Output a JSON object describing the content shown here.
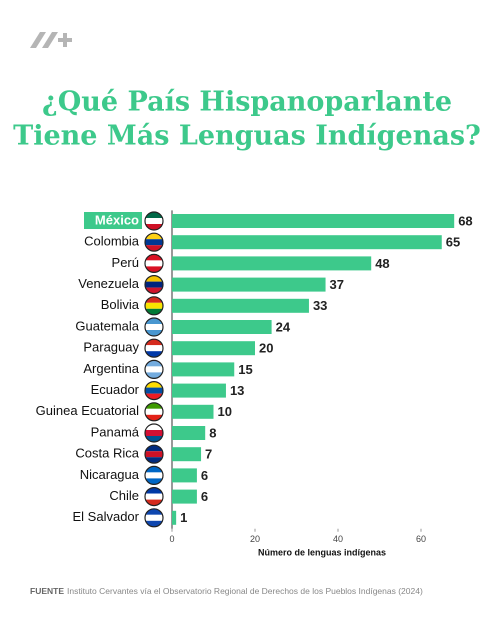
{
  "chart_data": {
    "type": "barh",
    "title": [
      "¿Qué País Hispanoparlante",
      "Tiene Más Lenguas Indígenas?"
    ],
    "categories": [
      "México",
      "Colombia",
      "Perú",
      "Venezuela",
      "Bolivia",
      "Guatemala",
      "Paraguay",
      "Argentina",
      "Ecuador",
      "Guinea Ecuatorial",
      "Panamá",
      "Costa Rica",
      "Nicaragua",
      "Chile",
      "El Salvador"
    ],
    "values": [
      68,
      65,
      48,
      37,
      33,
      24,
      20,
      15,
      13,
      10,
      8,
      7,
      6,
      6,
      1
    ],
    "color": "#3dc98b",
    "highlight": 0,
    "xlim": [
      0,
      70
    ],
    "xticks": [
      0,
      20,
      40,
      60
    ],
    "xlabel": "Número de lenguas indígenas",
    "source_label": "FUENTE",
    "source": "Instituto Cervantes vía el Observatorio Regional de Derechos de los Pueblos Indígenas (2024)"
  }
}
